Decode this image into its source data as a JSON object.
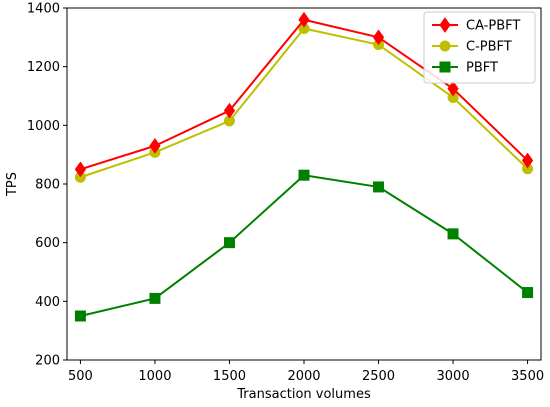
{
  "chart_data": {
    "type": "line",
    "title": "",
    "xlabel": "Transaction volumes",
    "ylabel": "TPS",
    "x": [
      500,
      1000,
      1500,
      2000,
      2500,
      3000,
      3500
    ],
    "xticks": [
      500,
      1000,
      1500,
      2000,
      2500,
      3000,
      3500
    ],
    "yticks": [
      200,
      400,
      600,
      800,
      1000,
      1200,
      1400
    ],
    "xlim": [
      410,
      3590
    ],
    "ylim": [
      200,
      1400
    ],
    "grid": false,
    "legend_position": "top-right",
    "series": [
      {
        "name": "CA-PBFT",
        "values": [
          850,
          930,
          1050,
          1360,
          1300,
          1125,
          880
        ],
        "color": "#ff0000",
        "marker": "diamond"
      },
      {
        "name": "C-PBFT",
        "values": [
          823,
          908,
          1015,
          1330,
          1275,
          1095,
          852
        ],
        "color": "#bfbf00",
        "marker": "circle"
      },
      {
        "name": "PBFT",
        "values": [
          350,
          410,
          600,
          830,
          790,
          630,
          430
        ],
        "color": "#008000",
        "marker": "square"
      }
    ]
  }
}
